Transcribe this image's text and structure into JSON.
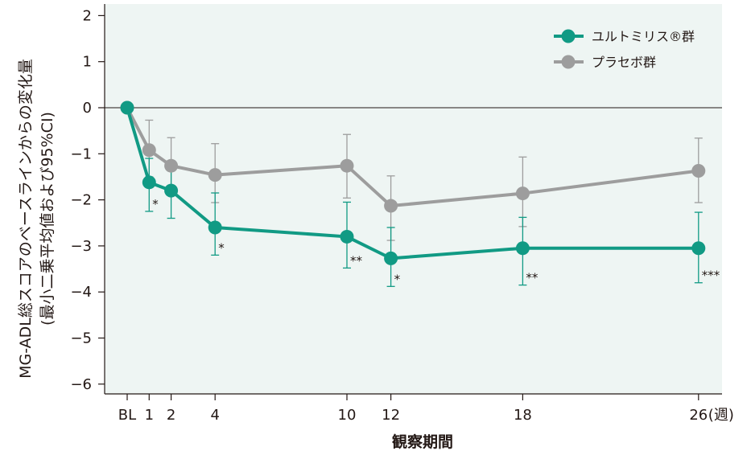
{
  "chart_data": {
    "type": "line",
    "x_tick_labels": [
      "BL",
      "1",
      "2",
      "4",
      "10",
      "12",
      "18",
      "26"
    ],
    "x_unit_label": "(週)",
    "x": [
      0,
      1,
      2,
      4,
      10,
      12,
      18,
      26
    ],
    "xlabel": "観察期間",
    "ylabel_line1": "MG-ADL総スコアのベースラインからの変化量",
    "ylabel_line2": "(最小二乗平均値および95%CI)",
    "ylim": [
      -6.3,
      2.3
    ],
    "y_ticks": [
      2,
      1,
      0,
      -1,
      -2,
      -3,
      -4,
      -5,
      -6
    ],
    "y_tick_labels": [
      "2",
      "1",
      "0",
      "−1",
      "−2",
      "−3",
      "−4",
      "−5",
      "−6"
    ],
    "legend_position": "top-right",
    "series": [
      {
        "name": "ユルトミリス®群",
        "color": "#119a84",
        "values": [
          0,
          -1.62,
          -1.8,
          -2.6,
          -2.8,
          -3.27,
          -3.05,
          -3.05
        ],
        "ci_low": [
          null,
          -2.25,
          -2.4,
          -3.2,
          -3.48,
          -3.88,
          -3.85,
          -3.8
        ],
        "ci_high": [
          null,
          -1.1,
          -1.22,
          -1.85,
          -2.05,
          -2.6,
          -2.38,
          -2.27
        ],
        "annotations": [
          "",
          "*",
          "",
          "*",
          "**",
          "*",
          "**",
          "***"
        ]
      },
      {
        "name": "プラセボ群",
        "color": "#9d9d9d",
        "values": [
          0,
          -0.92,
          -1.26,
          -1.46,
          -1.26,
          -2.13,
          -1.86,
          -1.37
        ],
        "ci_low": [
          null,
          -1.5,
          -1.8,
          -2.06,
          -1.96,
          -2.88,
          -2.58,
          -2.06
        ],
        "ci_high": [
          null,
          -0.27,
          -0.65,
          -0.78,
          -0.58,
          -1.48,
          -1.07,
          -0.66
        ]
      }
    ],
    "colors": {
      "plot_background": "#eef5f3",
      "zero_line": "#231815"
    }
  }
}
